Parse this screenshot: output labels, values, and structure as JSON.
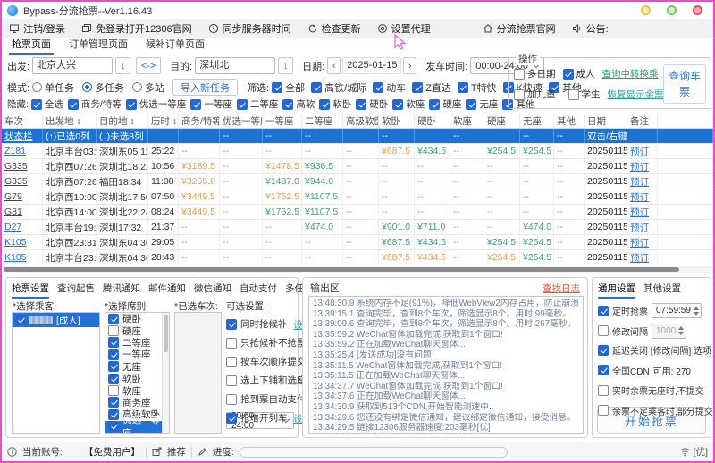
{
  "window": {
    "title": "Bypass-分流抢票--Ver1.16.43"
  },
  "menubar": [
    {
      "id": "logout-login",
      "icon": "monitor",
      "label": "注销/登录"
    },
    {
      "id": "open-12306",
      "icon": "windows",
      "label": "免登录打开12306官网"
    },
    {
      "id": "sync-server-time",
      "icon": "clock",
      "label": "同步服务器时间"
    },
    {
      "id": "check-update",
      "icon": "refresh",
      "label": "检查更新"
    },
    {
      "id": "set-proxy",
      "icon": "gear",
      "label": "设置代理"
    },
    {
      "id": "official-site",
      "icon": "home",
      "label": "分流抢票官网"
    },
    {
      "id": "announcement",
      "icon": "speaker",
      "label": "公告:"
    }
  ],
  "page_tabs": [
    {
      "label": "抢票页面",
      "active": true
    },
    {
      "label": "订单管理页面",
      "active": false
    },
    {
      "label": "候补订单页面",
      "active": false
    }
  ],
  "search": {
    "from_label": "出发:",
    "from": "北京大兴",
    "swap": "<->",
    "down": "↓",
    "to_label": "目的:",
    "to": "深圳北",
    "date_label": "日期:",
    "date": "2025-01-15",
    "prev": "‹",
    "next": "›",
    "time_label": "发车时间:",
    "time": "00:00-24:00",
    "mode_label": "模式:",
    "modes": [
      {
        "label": "单任务",
        "on": false
      },
      {
        "label": "多任务",
        "on": true
      },
      {
        "label": "多站",
        "on": false
      }
    ],
    "import_btn": "导入新任务",
    "filter_label": "筛选:",
    "filters": [
      "全部",
      "高铁/城际",
      "动车",
      "Z直达",
      "T特快",
      "K快速",
      "其他"
    ],
    "hide_label": "隐藏:",
    "hides": [
      "全选",
      "商务/特等",
      "优选一等座",
      "一等座",
      "二等座",
      "高软",
      "软卧",
      "硬卧",
      "软座",
      "硬座",
      "无座",
      "其他"
    ],
    "ops": {
      "title": "操作",
      "row1": [
        {
          "label": "多日期",
          "on": false
        },
        {
          "label": "成人",
          "on": true
        }
      ],
      "row2": [
        {
          "label": "加儿童",
          "on": false
        },
        {
          "label": "学生",
          "on": false
        }
      ],
      "link1": "查询中转换乘",
      "link2": "恢复显示余票",
      "query_btn": "查询车票"
    }
  },
  "table": {
    "columns": [
      "车次",
      "出发地 ↕",
      "目的地 ↕",
      "历时 ↕",
      "商务/特等",
      "优选一等座",
      "一等座",
      "二等座",
      "高级软卧",
      "软卧",
      "硬卧",
      "软座",
      "硬座",
      "无座",
      "其他",
      "日期",
      "备注"
    ],
    "status_row": {
      "train": "状态栏",
      "dep": "(↑)已选0列",
      "arr": "(↓)未选8列",
      "dur": "",
      "seats": [
        "",
        "--",
        "--",
        "--",
        "",
        "--",
        "",
        "--",
        "",
        "--",
        "--"
      ],
      "date": "双击/右键",
      "note": ""
    },
    "rows": [
      {
        "train": "Z181",
        "tc": "blue",
        "dep": "北京丰台03:49",
        "arr": "深圳东05:11",
        "dur": "25:22",
        "seats": [
          {
            "v": "--",
            "c": "m"
          },
          {
            "v": "--",
            "c": "m"
          },
          {
            "v": "--",
            "c": "m"
          },
          {
            "v": "--",
            "c": "m"
          },
          {
            "v": "--",
            "c": "m"
          },
          {
            "v": "¥687.5",
            "c": "o"
          },
          {
            "v": "¥434.5",
            "c": "g"
          },
          {
            "v": "--",
            "c": "m"
          },
          {
            "v": "¥254.5",
            "c": "g"
          },
          {
            "v": "¥254.5",
            "c": "g"
          },
          {
            "v": "--",
            "c": "m"
          }
        ],
        "date": "20250115",
        "note": "预订"
      },
      {
        "train": "G335",
        "tc": "dark",
        "dep": "北京西07:26",
        "arr": "深圳北18:22",
        "dur": "10:56",
        "seats": [
          {
            "v": "¥3189.5",
            "c": "o"
          },
          {
            "v": "--",
            "c": "m"
          },
          {
            "v": "¥1478.5",
            "c": "o"
          },
          {
            "v": "¥936.5",
            "c": "g"
          },
          {
            "v": "--",
            "c": "m"
          },
          {
            "v": "--",
            "c": "m"
          },
          {
            "v": "--",
            "c": "m"
          },
          {
            "v": "--",
            "c": "m"
          },
          {
            "v": "--",
            "c": "m"
          },
          {
            "v": "--",
            "c": "m"
          },
          {
            "v": "--",
            "c": "m"
          }
        ],
        "date": "20250115",
        "note": "预订"
      },
      {
        "train": "G335",
        "tc": "dark",
        "dep": "北京西07:26",
        "arr": "福田18:34",
        "dur": "11:08",
        "seats": [
          {
            "v": "¥3205.0",
            "c": "o"
          },
          {
            "v": "--",
            "c": "m"
          },
          {
            "v": "¥1487.0",
            "c": "g"
          },
          {
            "v": "¥944.0",
            "c": "g"
          },
          {
            "v": "--",
            "c": "m"
          },
          {
            "v": "--",
            "c": "m"
          },
          {
            "v": "--",
            "c": "m"
          },
          {
            "v": "--",
            "c": "m"
          },
          {
            "v": "--",
            "c": "m"
          },
          {
            "v": "--",
            "c": "m"
          },
          {
            "v": "--",
            "c": "m"
          }
        ],
        "date": "20250115",
        "note": "预订"
      },
      {
        "train": "G79",
        "tc": "dark",
        "dep": "北京西10:00",
        "arr": "深圳北17:50",
        "dur": "07:50",
        "seats": [
          {
            "v": "¥3449.5",
            "c": "o"
          },
          {
            "v": "--",
            "c": "m"
          },
          {
            "v": "¥1752.5",
            "c": "o"
          },
          {
            "v": "¥1107.5",
            "c": "g"
          },
          {
            "v": "--",
            "c": "m"
          },
          {
            "v": "--",
            "c": "m"
          },
          {
            "v": "--",
            "c": "m"
          },
          {
            "v": "--",
            "c": "m"
          },
          {
            "v": "--",
            "c": "m"
          },
          {
            "v": "--",
            "c": "m"
          },
          {
            "v": "--",
            "c": "m"
          }
        ],
        "date": "20250115",
        "note": "预订"
      },
      {
        "train": "G81",
        "tc": "dark",
        "dep": "北京西14:00",
        "arr": "深圳北22:24",
        "dur": "08:24",
        "seats": [
          {
            "v": "¥3449.5",
            "c": "o"
          },
          {
            "v": "--",
            "c": "m"
          },
          {
            "v": "¥1752.5",
            "c": "g"
          },
          {
            "v": "¥1107.5",
            "c": "g"
          },
          {
            "v": "--",
            "c": "m"
          },
          {
            "v": "--",
            "c": "m"
          },
          {
            "v": "--",
            "c": "m"
          },
          {
            "v": "--",
            "c": "m"
          },
          {
            "v": "--",
            "c": "m"
          },
          {
            "v": "--",
            "c": "m"
          },
          {
            "v": "--",
            "c": "m"
          }
        ],
        "date": "20250115",
        "note": "预订"
      },
      {
        "train": "D27",
        "tc": "blue",
        "dep": "北京丰台19:55",
        "arr": "深圳17:32",
        "dur": "21:37",
        "seats": [
          {
            "v": "--",
            "c": "m"
          },
          {
            "v": "--",
            "c": "m"
          },
          {
            "v": "--",
            "c": "m"
          },
          {
            "v": "¥474.0",
            "c": "g"
          },
          {
            "v": "--",
            "c": "m"
          },
          {
            "v": "¥901.0",
            "c": "g"
          },
          {
            "v": "¥711.0",
            "c": "g"
          },
          {
            "v": "--",
            "c": "m"
          },
          {
            "v": "--",
            "c": "m"
          },
          {
            "v": "¥474.0",
            "c": "g"
          },
          {
            "v": "--",
            "c": "m"
          }
        ],
        "date": "20250115",
        "note": "预订"
      },
      {
        "train": "K105",
        "tc": "blue",
        "dep": "北京西23:31",
        "arr": "深圳东04:36",
        "dur": "29:05",
        "seats": [
          {
            "v": "--",
            "c": "m"
          },
          {
            "v": "--",
            "c": "m"
          },
          {
            "v": "--",
            "c": "m"
          },
          {
            "v": "--",
            "c": "m"
          },
          {
            "v": "--",
            "c": "m"
          },
          {
            "v": "¥687.5",
            "c": "g"
          },
          {
            "v": "¥434.5",
            "c": "g"
          },
          {
            "v": "--",
            "c": "m"
          },
          {
            "v": "¥254.5",
            "c": "g"
          },
          {
            "v": "¥254.5",
            "c": "g"
          },
          {
            "v": "--",
            "c": "m"
          }
        ],
        "date": "20250115",
        "note": "预订"
      },
      {
        "train": "K105",
        "tc": "blue",
        "dep": "北京丰台23:53",
        "arr": "深圳东04:36",
        "dur": "28:43",
        "seats": [
          {
            "v": "--",
            "c": "m"
          },
          {
            "v": "--",
            "c": "m"
          },
          {
            "v": "--",
            "c": "m"
          },
          {
            "v": "--",
            "c": "m"
          },
          {
            "v": "--",
            "c": "m"
          },
          {
            "v": "¥687.5",
            "c": "o"
          },
          {
            "v": "¥434.5",
            "c": "o"
          },
          {
            "v": "--",
            "c": "m"
          },
          {
            "v": "¥254.5",
            "c": "o"
          },
          {
            "v": "¥254.5",
            "c": "g"
          },
          {
            "v": "--",
            "c": "m"
          }
        ],
        "date": "20250115",
        "note": "预订"
      }
    ]
  },
  "bottom": {
    "tabs": [
      "抢票设置",
      "查询起售",
      "腾讯通知",
      "邮件通知",
      "微信通知",
      "自动支付",
      "多任务设置"
    ],
    "passenger_label": "*选择乘客:",
    "passengers": [
      {
        "name": "[成人]",
        "on": true,
        "selected": true
      }
    ],
    "seat_label": "*选择席别:",
    "seats": [
      {
        "label": "硬卧",
        "on": true
      },
      {
        "label": "硬座",
        "on": false
      },
      {
        "label": "二等座",
        "on": true
      },
      {
        "label": "一等座",
        "on": true
      },
      {
        "label": "无座",
        "on": true
      },
      {
        "label": "软卧",
        "on": true
      },
      {
        "label": "软座",
        "on": false
      },
      {
        "label": "商务座",
        "on": true
      },
      {
        "label": "高级软卧",
        "on": true
      },
      {
        "label": "优选一等座",
        "on": true,
        "selected": true
      }
    ],
    "train_label": "*已选车次:",
    "opt_label": "可选设置:",
    "options": [
      {
        "label": "同时抢候补",
        "on": true,
        "link": "设置"
      },
      {
        "label": "只抢候补不抢票",
        "on": false
      },
      {
        "label": "按车次顺序提交",
        "on": false
      },
      {
        "label": "选上下铺和选座",
        "on": false
      },
      {
        "label": "抢到票自动支付",
        "on": false
      },
      {
        "label": "抢增开列车",
        "on": true,
        "link": "设置"
      }
    ],
    "time_range": "00:00-24:00"
  },
  "output": {
    "title": "输出区",
    "find_log": "查找日志",
    "lines": [
      "13:48:30.9  系统内存不足(91%)，降低WebView2内存占用，防止崩溃...",
      "13:39:15.1  查询完毕，查到8个车次，筛选显示8个。用时:99毫秒。",
      "13:39:09.6  查询完毕，查到8个车次，筛选显示8个。用时:267毫秒。",
      "13:35:59.2  WeChat窗体加载完成,获取到1个窗口!",
      "13:35:59.2  正在加载WeChat聊天窗体...",
      "13:35:25.4  [发送成功]没有问题",
      "13:35:11.5  WeChat窗体加载完成,获取到1个窗口!",
      "13:35:11.5  正在加载WeChat聊天窗体...",
      "13:34:37.7  WeChat窗体加载完成,获取到1个窗口!",
      "13:34:37.6  正在加载WeChat聊天窗体...",
      "13:34:30.9  获取到513个CDN,开始智能测速中..",
      "13:34:29.6  您还没有绑定微信通知，建议绑定微信通知，接受消息。",
      "13:34:29.5  链接12306服务器速度:203毫秒[优]"
    ]
  },
  "settings": {
    "tabs": [
      "通用设置",
      "其他设置"
    ],
    "items": [
      {
        "label": "定时抢票",
        "on": true,
        "field": "07:59:59",
        "spinner": true
      },
      {
        "label": "修改间隔",
        "on": false,
        "field": "1000",
        "spinner": true,
        "disabled": true
      },
      {
        "label": "延迟关闭 [修改间隔] 选项",
        "on": true
      },
      {
        "label": "全国CDN",
        "on": true,
        "suffix": "可用: 270"
      },
      {
        "label": "实时余票无座时,不提交",
        "on": false
      },
      {
        "label": "余票不足乘客时,部分提交",
        "on": false
      }
    ],
    "start_btn": "开始抢票"
  },
  "statusbar": {
    "account_label": "当前账号:",
    "account": "【免费用户】",
    "push": "推荐",
    "progress_label": "进度:",
    "net": "[优]"
  }
}
